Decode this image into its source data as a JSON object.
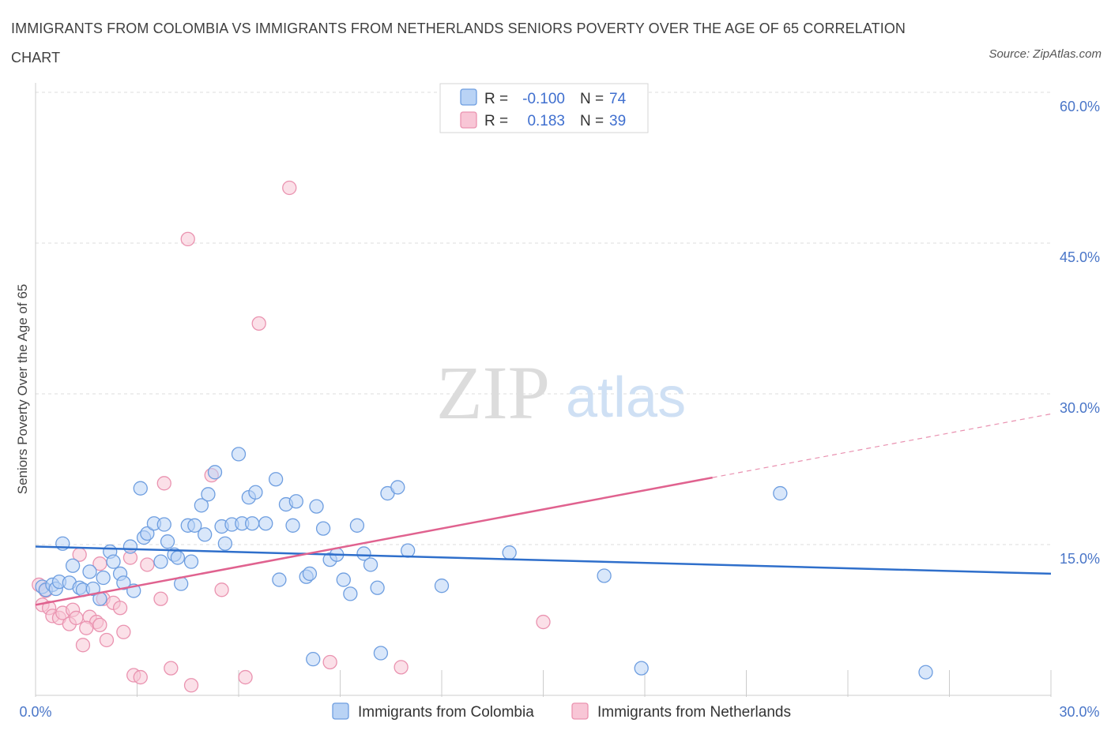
{
  "header": {
    "title": "IMMIGRANTS FROM COLOMBIA VS IMMIGRANTS FROM NETHERLANDS SENIORS POVERTY OVER THE AGE OF 65 CORRELATION CHART",
    "source": "Source: ZipAtlas.com"
  },
  "watermark": {
    "zip": "ZIP",
    "atlas": "atlas"
  },
  "colors": {
    "colombia_fill": "#b9d3f5",
    "colombia_stroke": "#6e9ee0",
    "colombia_line": "#2f6fcb",
    "netherlands_fill": "#f8c6d6",
    "netherlands_stroke": "#ea93b0",
    "netherlands_line": "#e0628f",
    "tick_label": "#4a76c8",
    "grid": "#dddddd"
  },
  "legend": {
    "rows": [
      {
        "r_label": "R =",
        "r_value": "-0.100",
        "n_label": "N =",
        "n_value": "74"
      },
      {
        "r_label": "R =",
        "r_value": "0.183",
        "n_label": "N =",
        "n_value": "39"
      }
    ]
  },
  "chart_data": {
    "type": "scatter",
    "title": "IMMIGRANTS FROM COLOMBIA VS IMMIGRANTS FROM NETHERLANDS SENIORS POVERTY OVER THE AGE OF 65 CORRELATION CHART",
    "xlabel": "",
    "ylabel": "Seniors Poverty Over the Age of 65",
    "xlim": [
      0,
      30
    ],
    "ylim": [
      0,
      60
    ],
    "x_tick_labels": [
      "0.0%",
      "30.0%"
    ],
    "y_ticks": [
      15,
      30,
      45,
      60
    ],
    "y_tick_labels": [
      "15.0%",
      "30.0%",
      "45.0%",
      "60.0%"
    ],
    "grid": true,
    "legend_position": "top-center",
    "series": [
      {
        "name": "Immigrants from Colombia",
        "r": -0.1,
        "n": 74,
        "trend": {
          "x": [
            0,
            30
          ],
          "y": [
            14.8,
            12.1
          ],
          "dashed_from": null
        },
        "points": [
          [
            0.2,
            10.8
          ],
          [
            0.3,
            10.5
          ],
          [
            0.5,
            11.0
          ],
          [
            0.6,
            10.6
          ],
          [
            0.7,
            11.3
          ],
          [
            0.8,
            15.1
          ],
          [
            1.0,
            11.2
          ],
          [
            1.1,
            12.9
          ],
          [
            1.3,
            10.7
          ],
          [
            1.4,
            10.5
          ],
          [
            1.6,
            12.3
          ],
          [
            1.7,
            10.6
          ],
          [
            1.9,
            9.6
          ],
          [
            2.0,
            11.7
          ],
          [
            2.2,
            14.3
          ],
          [
            2.3,
            13.3
          ],
          [
            2.5,
            12.1
          ],
          [
            2.6,
            11.2
          ],
          [
            2.8,
            14.8
          ],
          [
            2.9,
            10.4
          ],
          [
            3.1,
            20.6
          ],
          [
            3.2,
            15.7
          ],
          [
            3.3,
            16.1
          ],
          [
            3.5,
            17.1
          ],
          [
            3.7,
            13.3
          ],
          [
            3.8,
            17.0
          ],
          [
            3.9,
            15.3
          ],
          [
            4.1,
            14.0
          ],
          [
            4.2,
            13.7
          ],
          [
            4.3,
            11.1
          ],
          [
            4.5,
            16.9
          ],
          [
            4.6,
            13.3
          ],
          [
            4.7,
            16.9
          ],
          [
            4.9,
            18.9
          ],
          [
            5.0,
            16.0
          ],
          [
            5.1,
            20.0
          ],
          [
            5.3,
            22.2
          ],
          [
            5.5,
            16.8
          ],
          [
            5.6,
            15.1
          ],
          [
            5.8,
            17.0
          ],
          [
            6.0,
            24.0
          ],
          [
            6.1,
            17.1
          ],
          [
            6.3,
            19.7
          ],
          [
            6.4,
            17.1
          ],
          [
            6.5,
            20.2
          ],
          [
            6.8,
            17.1
          ],
          [
            7.1,
            21.5
          ],
          [
            7.2,
            11.5
          ],
          [
            7.4,
            19.0
          ],
          [
            7.6,
            16.9
          ],
          [
            7.7,
            19.3
          ],
          [
            8.0,
            11.8
          ],
          [
            8.1,
            12.1
          ],
          [
            8.3,
            18.8
          ],
          [
            8.5,
            16.6
          ],
          [
            8.7,
            13.5
          ],
          [
            8.9,
            14.0
          ],
          [
            9.1,
            11.5
          ],
          [
            9.3,
            10.1
          ],
          [
            9.5,
            16.9
          ],
          [
            9.7,
            14.1
          ],
          [
            9.9,
            13.0
          ],
          [
            10.1,
            10.7
          ],
          [
            10.2,
            4.2
          ],
          [
            10.4,
            20.1
          ],
          [
            10.7,
            20.7
          ],
          [
            11.0,
            14.4
          ],
          [
            12.0,
            10.9
          ],
          [
            14.0,
            14.2
          ],
          [
            16.8,
            11.9
          ],
          [
            17.9,
            2.7
          ],
          [
            22.0,
            20.1
          ],
          [
            8.2,
            3.6
          ],
          [
            26.3,
            2.3
          ]
        ]
      },
      {
        "name": "Immigrants from Netherlands",
        "r": 0.183,
        "n": 39,
        "trend": {
          "x": [
            0,
            30
          ],
          "y": [
            9.0,
            28.0
          ],
          "dashed_from": 20.0
        },
        "points": [
          [
            0.1,
            11.0
          ],
          [
            0.2,
            9.0
          ],
          [
            0.3,
            10.4
          ],
          [
            0.4,
            8.7
          ],
          [
            0.5,
            7.9
          ],
          [
            0.7,
            7.7
          ],
          [
            0.8,
            8.2
          ],
          [
            1.0,
            7.1
          ],
          [
            1.1,
            8.5
          ],
          [
            1.2,
            7.7
          ],
          [
            1.3,
            14.0
          ],
          [
            1.4,
            5.0
          ],
          [
            1.6,
            7.8
          ],
          [
            1.8,
            7.3
          ],
          [
            1.9,
            7.0
          ],
          [
            2.0,
            9.6
          ],
          [
            2.1,
            5.5
          ],
          [
            2.3,
            9.2
          ],
          [
            2.5,
            8.7
          ],
          [
            2.6,
            6.3
          ],
          [
            2.8,
            13.7
          ],
          [
            2.9,
            2.0
          ],
          [
            3.1,
            1.8
          ],
          [
            3.3,
            13.0
          ],
          [
            3.7,
            9.6
          ],
          [
            3.8,
            21.1
          ],
          [
            4.0,
            2.7
          ],
          [
            4.5,
            45.4
          ],
          [
            4.6,
            1.0
          ],
          [
            5.2,
            21.9
          ],
          [
            5.5,
            10.5
          ],
          [
            6.2,
            1.8
          ],
          [
            6.6,
            37.0
          ],
          [
            7.5,
            50.5
          ],
          [
            8.7,
            3.3
          ],
          [
            10.8,
            2.8
          ],
          [
            15.0,
            7.3
          ],
          [
            1.5,
            6.7
          ],
          [
            1.9,
            13.1
          ]
        ]
      }
    ]
  }
}
